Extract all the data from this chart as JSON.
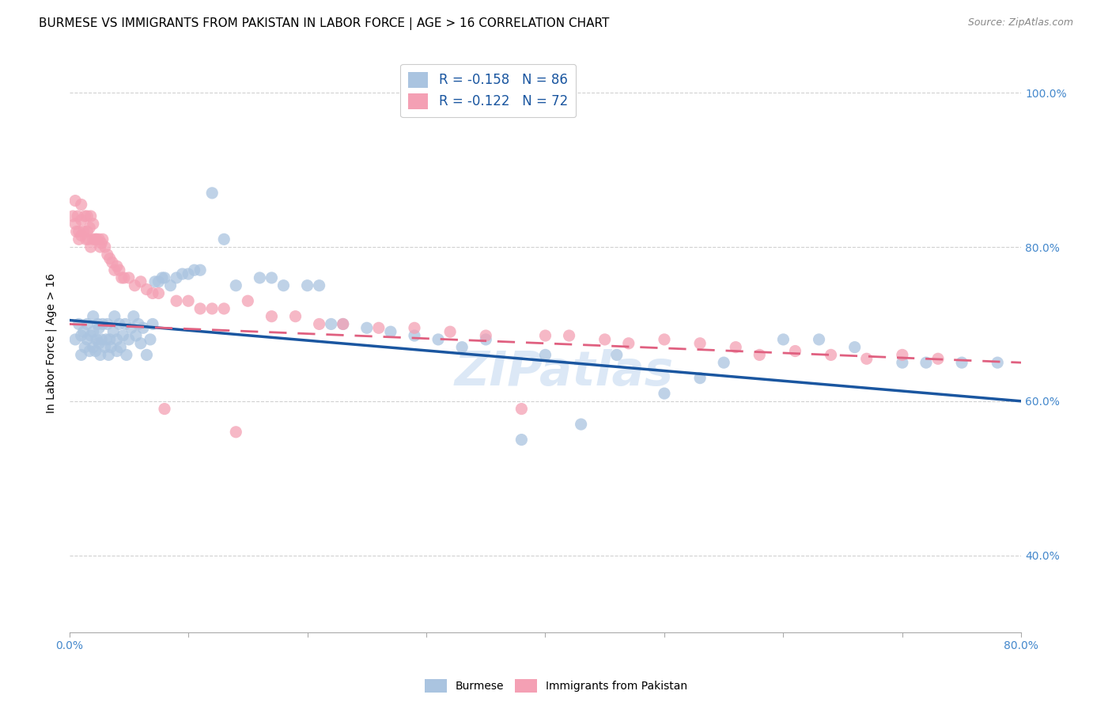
{
  "title": "BURMESE VS IMMIGRANTS FROM PAKISTAN IN LABOR FORCE | AGE > 16 CORRELATION CHART",
  "source": "Source: ZipAtlas.com",
  "ylabel": "In Labor Force | Age > 16",
  "xlim": [
    0.0,
    0.8
  ],
  "ylim": [
    0.3,
    1.05
  ],
  "watermark": "ZIPatlas",
  "legend_blue_r": "R = -0.158",
  "legend_blue_n": "N = 86",
  "legend_pink_r": "R = -0.122",
  "legend_pink_n": "N = 72",
  "burmese_color": "#aac4e0",
  "pakistan_color": "#f4a0b4",
  "burmese_line_color": "#1a56a0",
  "pakistan_line_color": "#e06080",
  "burmese_scatter_x": [
    0.005,
    0.008,
    0.01,
    0.01,
    0.012,
    0.013,
    0.015,
    0.015,
    0.017,
    0.018,
    0.02,
    0.02,
    0.02,
    0.022,
    0.023,
    0.024,
    0.025,
    0.025,
    0.026,
    0.027,
    0.028,
    0.03,
    0.031,
    0.032,
    0.033,
    0.034,
    0.035,
    0.037,
    0.038,
    0.04,
    0.04,
    0.042,
    0.043,
    0.045,
    0.047,
    0.048,
    0.05,
    0.052,
    0.054,
    0.056,
    0.058,
    0.06,
    0.062,
    0.065,
    0.068,
    0.07,
    0.072,
    0.075,
    0.078,
    0.08,
    0.085,
    0.09,
    0.095,
    0.1,
    0.105,
    0.11,
    0.12,
    0.13,
    0.14,
    0.16,
    0.17,
    0.18,
    0.2,
    0.21,
    0.22,
    0.23,
    0.25,
    0.27,
    0.29,
    0.31,
    0.33,
    0.35,
    0.38,
    0.4,
    0.43,
    0.46,
    0.5,
    0.53,
    0.55,
    0.6,
    0.63,
    0.66,
    0.7,
    0.72,
    0.75,
    0.78
  ],
  "burmese_scatter_y": [
    0.68,
    0.7,
    0.685,
    0.66,
    0.69,
    0.67,
    0.68,
    0.7,
    0.665,
    0.685,
    0.67,
    0.69,
    0.71,
    0.665,
    0.68,
    0.7,
    0.675,
    0.695,
    0.66,
    0.68,
    0.7,
    0.67,
    0.68,
    0.7,
    0.66,
    0.68,
    0.67,
    0.69,
    0.71,
    0.665,
    0.68,
    0.7,
    0.67,
    0.685,
    0.7,
    0.66,
    0.68,
    0.695,
    0.71,
    0.685,
    0.7,
    0.675,
    0.695,
    0.66,
    0.68,
    0.7,
    0.755,
    0.755,
    0.76,
    0.76,
    0.75,
    0.76,
    0.765,
    0.765,
    0.77,
    0.77,
    0.87,
    0.81,
    0.75,
    0.76,
    0.76,
    0.75,
    0.75,
    0.75,
    0.7,
    0.7,
    0.695,
    0.69,
    0.685,
    0.68,
    0.67,
    0.68,
    0.55,
    0.66,
    0.57,
    0.66,
    0.61,
    0.63,
    0.65,
    0.68,
    0.68,
    0.67,
    0.65,
    0.65,
    0.65,
    0.65
  ],
  "pakistan_scatter_x": [
    0.003,
    0.005,
    0.005,
    0.006,
    0.007,
    0.008,
    0.008,
    0.01,
    0.01,
    0.01,
    0.012,
    0.013,
    0.014,
    0.015,
    0.015,
    0.016,
    0.017,
    0.018,
    0.018,
    0.02,
    0.02,
    0.022,
    0.023,
    0.025,
    0.026,
    0.027,
    0.028,
    0.03,
    0.032,
    0.034,
    0.036,
    0.038,
    0.04,
    0.042,
    0.044,
    0.046,
    0.05,
    0.055,
    0.06,
    0.065,
    0.07,
    0.075,
    0.08,
    0.09,
    0.1,
    0.11,
    0.12,
    0.13,
    0.14,
    0.15,
    0.17,
    0.19,
    0.21,
    0.23,
    0.26,
    0.29,
    0.32,
    0.35,
    0.38,
    0.4,
    0.42,
    0.45,
    0.47,
    0.5,
    0.53,
    0.56,
    0.58,
    0.61,
    0.64,
    0.67,
    0.7,
    0.73
  ],
  "pakistan_scatter_y": [
    0.84,
    0.86,
    0.83,
    0.82,
    0.84,
    0.81,
    0.82,
    0.835,
    0.855,
    0.815,
    0.82,
    0.84,
    0.81,
    0.82,
    0.84,
    0.81,
    0.825,
    0.84,
    0.8,
    0.81,
    0.83,
    0.81,
    0.81,
    0.81,
    0.8,
    0.805,
    0.81,
    0.8,
    0.79,
    0.785,
    0.78,
    0.77,
    0.775,
    0.77,
    0.76,
    0.76,
    0.76,
    0.75,
    0.755,
    0.745,
    0.74,
    0.74,
    0.59,
    0.73,
    0.73,
    0.72,
    0.72,
    0.72,
    0.56,
    0.73,
    0.71,
    0.71,
    0.7,
    0.7,
    0.695,
    0.695,
    0.69,
    0.685,
    0.59,
    0.685,
    0.685,
    0.68,
    0.675,
    0.68,
    0.675,
    0.67,
    0.66,
    0.665,
    0.66,
    0.655,
    0.66,
    0.655
  ],
  "blue_trend_x": [
    0.0,
    0.8
  ],
  "blue_trend_y": [
    0.705,
    0.6
  ],
  "pink_trend_x": [
    0.0,
    0.8
  ],
  "pink_trend_y": [
    0.7,
    0.65
  ],
  "background_color": "#ffffff",
  "grid_color": "#cccccc",
  "title_fontsize": 11,
  "label_fontsize": 10,
  "tick_color": "#4488cc",
  "right_yticks": [
    0.4,
    0.6,
    0.8,
    1.0
  ],
  "right_ytick_labels": [
    "40.0%",
    "60.0%",
    "80.0%",
    "100.0%"
  ]
}
